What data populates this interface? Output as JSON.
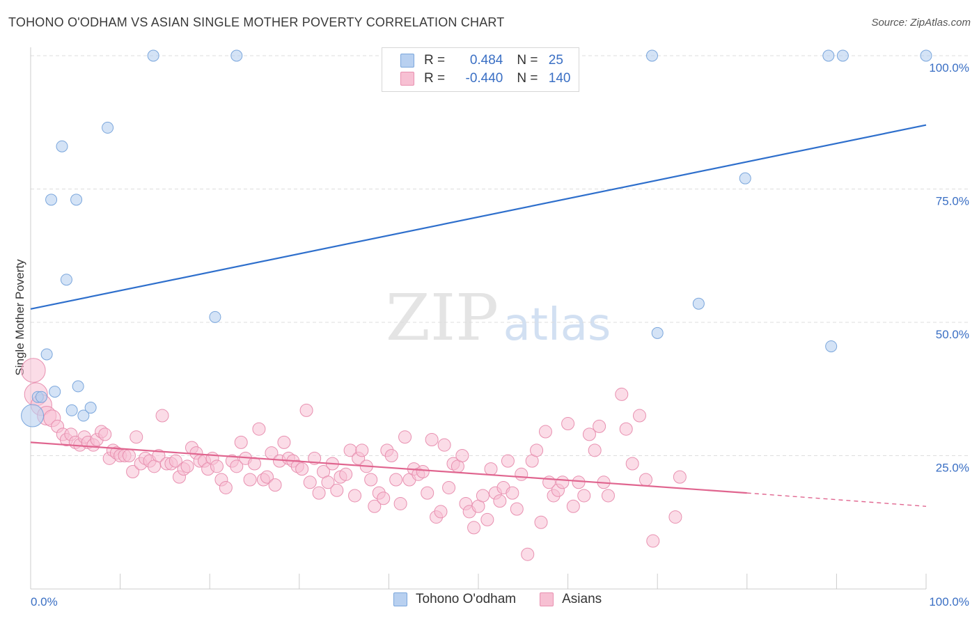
{
  "title": "TOHONO O'ODHAM VS ASIAN SINGLE MOTHER POVERTY CORRELATION CHART",
  "source": "Source: ZipAtlas.com",
  "watermark": {
    "zip": "ZIP",
    "atlas": "atlas"
  },
  "colors": {
    "blue_fill": "#b8d0f0",
    "blue_stroke": "#7aa6dc",
    "blue_line": "#2e6fcc",
    "pink_fill": "#f7c0d3",
    "pink_stroke": "#e890b0",
    "pink_line": "#e0658f",
    "axis_label": "#3a6fc4",
    "grid": "#dddddd"
  },
  "legend": {
    "rows": [
      {
        "r_label": "R = ",
        "r_value": "0.484",
        "n_label": "N = ",
        "n_value": "25"
      },
      {
        "r_label": "R = ",
        "r_value": "-0.440",
        "n_label": "N = ",
        "n_value": "140"
      }
    ]
  },
  "bottom_legend": [
    "Tohono O'odham",
    "Asians"
  ],
  "chart_data": {
    "type": "scatter",
    "xlabel": "",
    "ylabel": "Single Mother Poverty",
    "x_tick_labels": [
      "0.0%",
      "100.0%"
    ],
    "y_tick_labels": [
      "25.0%",
      "50.0%",
      "75.0%",
      "100.0%"
    ],
    "xlim": [
      0,
      100
    ],
    "ylim": [
      0,
      100
    ],
    "y_ticks": [
      25,
      50,
      75,
      100
    ],
    "grid": true,
    "series": [
      {
        "name": "Tohono O'odham",
        "color": "#b8d0f0",
        "trend": {
          "x": [
            0,
            100
          ],
          "y": [
            52.5,
            87.0
          ],
          "dashed_from": null
        },
        "points": [
          [
            0.2,
            32.5
          ],
          [
            0.8,
            36.0
          ],
          [
            1.2,
            36.0
          ],
          [
            1.8,
            44.0
          ],
          [
            2.3,
            73.0
          ],
          [
            2.7,
            37.0
          ],
          [
            3.5,
            83.0
          ],
          [
            4.0,
            58.0
          ],
          [
            4.6,
            33.5
          ],
          [
            5.1,
            73.0
          ],
          [
            5.3,
            38.0
          ],
          [
            5.9,
            32.5
          ],
          [
            6.7,
            34.0
          ],
          [
            8.6,
            86.5
          ],
          [
            13.7,
            100.0
          ],
          [
            20.6,
            51.0
          ],
          [
            23.0,
            100.0
          ],
          [
            70.0,
            48.0
          ],
          [
            69.4,
            100.0
          ],
          [
            74.6,
            53.5
          ],
          [
            79.8,
            77.0
          ],
          [
            89.1,
            100.0
          ],
          [
            89.4,
            45.5
          ],
          [
            90.7,
            100.0
          ],
          [
            100.0,
            100.0
          ]
        ]
      },
      {
        "name": "Asians",
        "color": "#f7c0d3",
        "trend": {
          "x": [
            0,
            80,
            100
          ],
          "y": [
            27.5,
            18.0,
            15.5
          ],
          "dashed_from": 80
        },
        "points": [
          [
            0.3,
            41.0
          ],
          [
            0.6,
            36.5
          ],
          [
            1.2,
            34.5
          ],
          [
            1.8,
            32.5
          ],
          [
            2.4,
            32.0
          ],
          [
            3.0,
            30.5
          ],
          [
            3.6,
            29.0
          ],
          [
            4.0,
            28.0
          ],
          [
            4.5,
            29.0
          ],
          [
            5.0,
            27.5
          ],
          [
            5.5,
            27.0
          ],
          [
            6.0,
            28.5
          ],
          [
            6.4,
            27.5
          ],
          [
            7.0,
            27.0
          ],
          [
            7.4,
            28.0
          ],
          [
            7.9,
            29.5
          ],
          [
            8.3,
            29.0
          ],
          [
            8.8,
            24.5
          ],
          [
            9.2,
            26.0
          ],
          [
            9.6,
            25.5
          ],
          [
            10.0,
            25.0
          ],
          [
            10.5,
            25.0
          ],
          [
            11.0,
            25.0
          ],
          [
            11.4,
            22.0
          ],
          [
            11.8,
            28.5
          ],
          [
            12.3,
            23.5
          ],
          [
            12.8,
            24.5
          ],
          [
            13.3,
            24.0
          ],
          [
            13.8,
            23.0
          ],
          [
            14.3,
            25.0
          ],
          [
            14.7,
            32.5
          ],
          [
            15.2,
            23.5
          ],
          [
            15.7,
            23.5
          ],
          [
            16.2,
            24.0
          ],
          [
            16.6,
            21.0
          ],
          [
            17.1,
            22.5
          ],
          [
            17.5,
            23.0
          ],
          [
            18.0,
            26.5
          ],
          [
            18.5,
            25.5
          ],
          [
            18.9,
            24.0
          ],
          [
            19.4,
            24.0
          ],
          [
            19.8,
            22.5
          ],
          [
            20.3,
            24.5
          ],
          [
            20.8,
            23.0
          ],
          [
            21.3,
            20.5
          ],
          [
            21.8,
            19.0
          ],
          [
            22.5,
            24.0
          ],
          [
            23.0,
            23.0
          ],
          [
            23.5,
            27.5
          ],
          [
            24.0,
            24.5
          ],
          [
            24.5,
            20.5
          ],
          [
            25.0,
            23.5
          ],
          [
            25.5,
            30.0
          ],
          [
            26.0,
            20.5
          ],
          [
            26.4,
            21.0
          ],
          [
            26.9,
            25.5
          ],
          [
            27.3,
            19.5
          ],
          [
            27.8,
            24.0
          ],
          [
            28.3,
            27.5
          ],
          [
            28.8,
            24.5
          ],
          [
            29.3,
            24.0
          ],
          [
            29.8,
            23.0
          ],
          [
            30.3,
            22.5
          ],
          [
            30.8,
            33.5
          ],
          [
            31.2,
            20.0
          ],
          [
            31.7,
            24.5
          ],
          [
            32.2,
            18.0
          ],
          [
            32.7,
            22.0
          ],
          [
            33.2,
            20.0
          ],
          [
            33.7,
            23.5
          ],
          [
            34.2,
            18.5
          ],
          [
            34.6,
            21.0
          ],
          [
            35.2,
            21.5
          ],
          [
            35.7,
            26.0
          ],
          [
            36.2,
            17.5
          ],
          [
            36.6,
            24.5
          ],
          [
            37.0,
            26.0
          ],
          [
            37.5,
            23.0
          ],
          [
            38.0,
            20.5
          ],
          [
            38.4,
            15.5
          ],
          [
            38.9,
            18.0
          ],
          [
            39.4,
            17.0
          ],
          [
            39.8,
            26.0
          ],
          [
            40.3,
            25.0
          ],
          [
            40.8,
            20.5
          ],
          [
            41.3,
            16.0
          ],
          [
            41.8,
            28.5
          ],
          [
            42.3,
            20.5
          ],
          [
            42.8,
            22.5
          ],
          [
            43.3,
            21.5
          ],
          [
            43.8,
            22.0
          ],
          [
            44.3,
            18.0
          ],
          [
            44.8,
            28.0
          ],
          [
            45.3,
            13.5
          ],
          [
            45.8,
            14.5
          ],
          [
            46.2,
            27.0
          ],
          [
            46.7,
            19.0
          ],
          [
            47.2,
            23.5
          ],
          [
            47.7,
            23.0
          ],
          [
            48.2,
            25.0
          ],
          [
            48.6,
            16.0
          ],
          [
            49.0,
            14.5
          ],
          [
            49.5,
            11.5
          ],
          [
            50.0,
            15.5
          ],
          [
            50.5,
            17.5
          ],
          [
            51.0,
            13.0
          ],
          [
            51.4,
            22.5
          ],
          [
            51.9,
            18.0
          ],
          [
            52.4,
            16.5
          ],
          [
            52.8,
            19.0
          ],
          [
            53.3,
            24.0
          ],
          [
            53.8,
            18.0
          ],
          [
            54.3,
            15.0
          ],
          [
            54.8,
            21.5
          ],
          [
            55.5,
            6.5
          ],
          [
            56.0,
            24.0
          ],
          [
            56.5,
            26.0
          ],
          [
            57.0,
            12.5
          ],
          [
            57.5,
            29.5
          ],
          [
            57.9,
            20.0
          ],
          [
            58.4,
            17.5
          ],
          [
            58.9,
            18.5
          ],
          [
            59.4,
            20.0
          ],
          [
            60.0,
            31.0
          ],
          [
            60.6,
            15.5
          ],
          [
            61.2,
            20.0
          ],
          [
            61.8,
            17.5
          ],
          [
            62.4,
            29.0
          ],
          [
            63.0,
            26.0
          ],
          [
            63.5,
            30.5
          ],
          [
            64.0,
            20.0
          ],
          [
            64.5,
            17.5
          ],
          [
            66.0,
            36.5
          ],
          [
            66.5,
            30.0
          ],
          [
            67.2,
            23.5
          ],
          [
            68.0,
            32.5
          ],
          [
            68.7,
            20.5
          ],
          [
            69.5,
            9.0
          ],
          [
            72.0,
            13.5
          ],
          [
            72.5,
            21.0
          ]
        ]
      }
    ]
  }
}
